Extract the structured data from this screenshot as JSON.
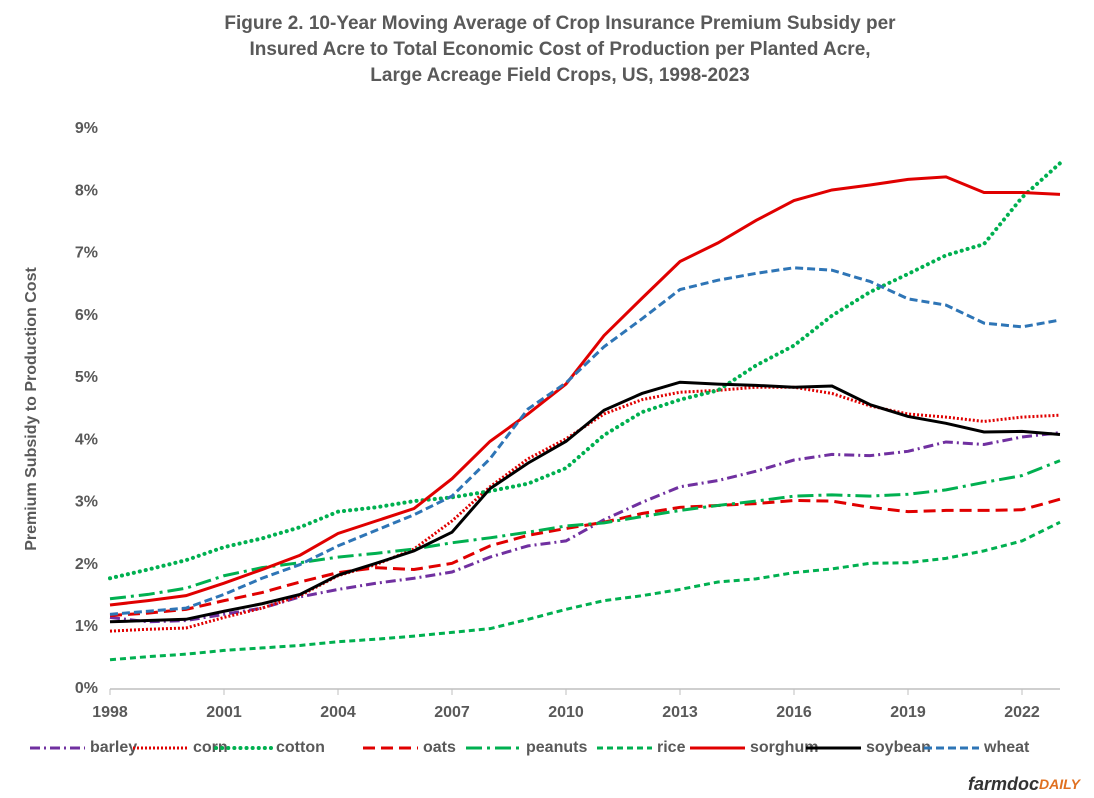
{
  "chart_data": {
    "type": "line",
    "title": [
      "Figure 2. 10-Year Moving Average of Crop Insurance Premium Subsidy per",
      "Insured Acre to Total Economic Cost of Production per Planted Acre,",
      "Large Acreage Field Crops, US, 1998-2023"
    ],
    "y_label": "Premium Subsidy to Production Cost",
    "brand": [
      "farmdoc",
      "DAILY"
    ],
    "x": [
      1998,
      1999,
      2000,
      2001,
      2002,
      2003,
      2004,
      2005,
      2006,
      2007,
      2008,
      2009,
      2010,
      2011,
      2012,
      2013,
      2014,
      2015,
      2016,
      2017,
      2018,
      2019,
      2020,
      2021,
      2022,
      2023
    ],
    "xlim": [
      1998,
      2023
    ],
    "xticks": [
      1998,
      2001,
      2004,
      2007,
      2010,
      2013,
      2016,
      2019,
      2022
    ],
    "ylim": [
      0,
      9
    ],
    "yticks": [
      {
        "value": 0,
        "label": "0%"
      },
      {
        "value": 1,
        "label": "1%"
      },
      {
        "value": 2,
        "label": "2%"
      },
      {
        "value": 3,
        "label": "3%"
      },
      {
        "value": 4,
        "label": "4%"
      },
      {
        "value": 5,
        "label": "5%"
      },
      {
        "value": 6,
        "label": "6%"
      },
      {
        "value": 7,
        "label": "7%"
      },
      {
        "value": 8,
        "label": "8%"
      },
      {
        "value": 9,
        "label": "9%"
      }
    ],
    "grid": false,
    "legend": "bottom",
    "series": [
      {
        "name": "barley",
        "color": "#7030a0",
        "dash": "10 4 2 4",
        "values": [
          1.15,
          1.08,
          1.1,
          1.2,
          1.3,
          1.48,
          1.6,
          1.7,
          1.78,
          1.88,
          2.12,
          2.3,
          2.38,
          2.72,
          3.0,
          3.25,
          3.35,
          3.5,
          3.68,
          3.77,
          3.75,
          3.82,
          3.97,
          3.93,
          4.05,
          4.12
        ]
      },
      {
        "name": "corn",
        "color": "#e00000",
        "dash": "2 2",
        "values": [
          0.93,
          0.96,
          0.98,
          1.15,
          1.3,
          1.5,
          1.82,
          2.0,
          2.25,
          2.7,
          3.25,
          3.7,
          4.02,
          4.42,
          4.65,
          4.77,
          4.8,
          4.85,
          4.85,
          4.75,
          4.55,
          4.42,
          4.37,
          4.3,
          4.37,
          4.4
        ]
      },
      {
        "name": "cotton",
        "color": "#00b050",
        "dash": "0.1 6",
        "values": [
          1.78,
          1.92,
          2.07,
          2.28,
          2.42,
          2.6,
          2.85,
          2.92,
          3.02,
          3.08,
          3.18,
          3.3,
          3.55,
          4.08,
          4.45,
          4.65,
          4.8,
          5.2,
          5.52,
          6.0,
          6.38,
          6.67,
          6.97,
          7.15,
          7.9,
          8.45
        ]
      },
      {
        "name": "oats",
        "color": "#e00000",
        "dash": "12 6",
        "values": [
          1.18,
          1.22,
          1.28,
          1.42,
          1.55,
          1.72,
          1.87,
          1.95,
          1.92,
          2.02,
          2.3,
          2.47,
          2.58,
          2.68,
          2.82,
          2.92,
          2.95,
          2.98,
          3.03,
          3.02,
          2.92,
          2.85,
          2.87,
          2.87,
          2.88,
          3.05
        ]
      },
      {
        "name": "peanuts",
        "color": "#00b050",
        "dash": "16 5 3 5",
        "values": [
          1.45,
          1.52,
          1.62,
          1.82,
          1.95,
          2.03,
          2.12,
          2.18,
          2.25,
          2.35,
          2.43,
          2.52,
          2.62,
          2.67,
          2.77,
          2.87,
          2.95,
          3.02,
          3.1,
          3.12,
          3.1,
          3.13,
          3.2,
          3.32,
          3.43,
          3.67
        ]
      },
      {
        "name": "rice",
        "color": "#00b050",
        "dash": "6 4",
        "values": [
          0.47,
          0.52,
          0.56,
          0.62,
          0.66,
          0.7,
          0.76,
          0.8,
          0.85,
          0.91,
          0.97,
          1.12,
          1.28,
          1.42,
          1.5,
          1.6,
          1.72,
          1.77,
          1.87,
          1.93,
          2.02,
          2.03,
          2.1,
          2.22,
          2.38,
          2.68
        ]
      },
      {
        "name": "sorghum",
        "color": "#e00000",
        "dash": "none",
        "values": [
          1.35,
          1.42,
          1.5,
          1.7,
          1.92,
          2.15,
          2.5,
          2.7,
          2.9,
          3.38,
          3.98,
          4.42,
          4.9,
          5.68,
          6.28,
          6.87,
          7.17,
          7.53,
          7.85,
          8.02,
          8.1,
          8.19,
          8.23,
          7.98,
          7.98,
          7.95
        ]
      },
      {
        "name": "soybean",
        "color": "#000000",
        "dash": "none",
        "values": [
          1.08,
          1.1,
          1.12,
          1.25,
          1.37,
          1.52,
          1.83,
          2.02,
          2.22,
          2.52,
          3.22,
          3.63,
          3.98,
          4.48,
          4.75,
          4.93,
          4.9,
          4.88,
          4.85,
          4.87,
          4.57,
          4.38,
          4.27,
          4.13,
          4.14,
          4.09
        ]
      },
      {
        "name": "wheat",
        "color": "#2e75b6",
        "dash": "8 4",
        "values": [
          1.2,
          1.25,
          1.3,
          1.52,
          1.78,
          2.0,
          2.3,
          2.55,
          2.8,
          3.1,
          3.7,
          4.5,
          4.92,
          5.5,
          5.95,
          6.42,
          6.57,
          6.68,
          6.77,
          6.73,
          6.55,
          6.27,
          6.17,
          5.88,
          5.82,
          5.93
        ]
      }
    ]
  }
}
